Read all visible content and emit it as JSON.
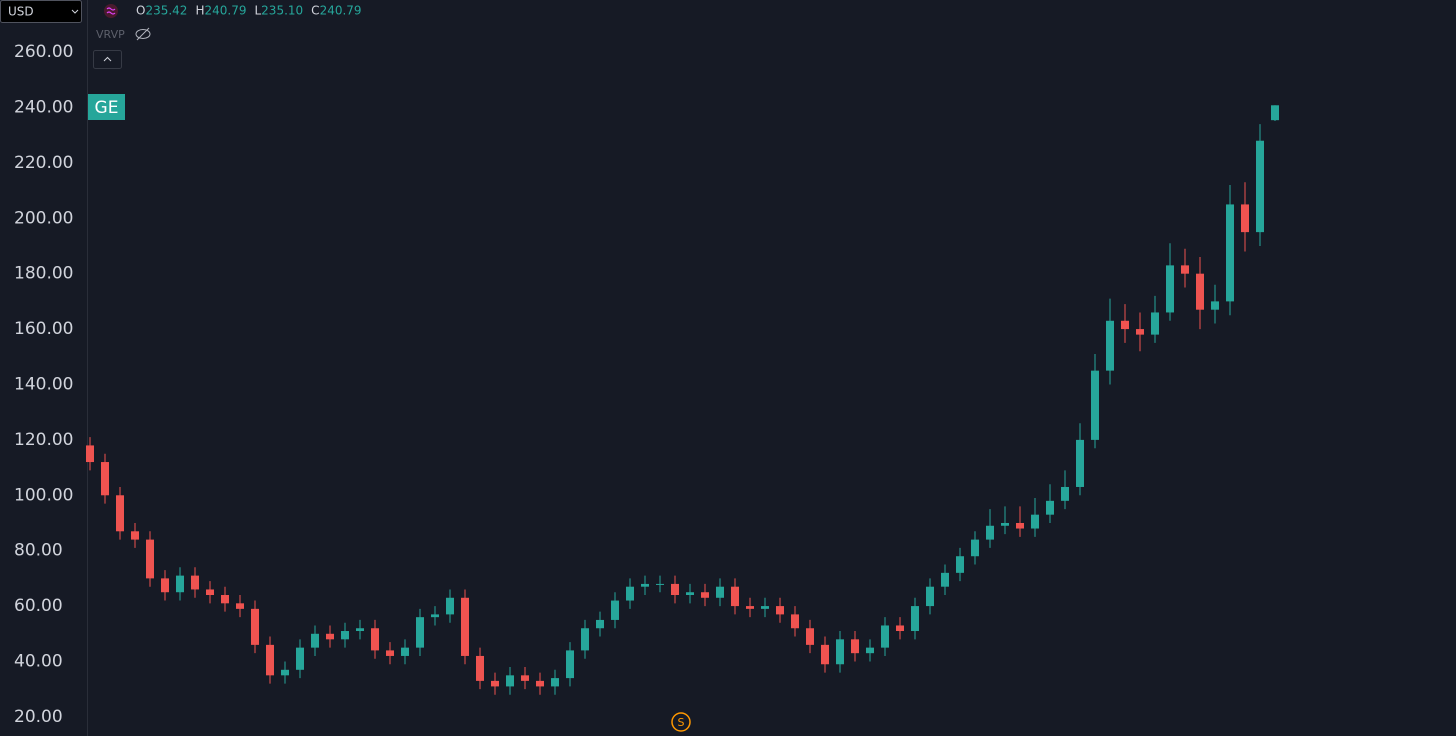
{
  "chart_data": {
    "type": "candlestick",
    "symbol": "GE",
    "currency": "USD",
    "indicator": "VRVP",
    "event_marker": "S",
    "ohlc_legend": [
      {
        "key": "O",
        "text": "235.42"
      },
      {
        "key": "H",
        "text": "240.79"
      },
      {
        "key": "L",
        "text": "235.10"
      },
      {
        "key": "C",
        "text": "240.79"
      }
    ],
    "up_color": "#26a69a",
    "down_color": "#ef5350",
    "grid": false,
    "ylim": [
      13.1,
      278.8
    ],
    "yticks": [
      {
        "value": 20,
        "label": "20.00"
      },
      {
        "value": 40,
        "label": "40.00"
      },
      {
        "value": 60,
        "label": "60.00"
      },
      {
        "value": 80,
        "label": "80.00"
      },
      {
        "value": 100,
        "label": "100.00"
      },
      {
        "value": 120,
        "label": "120.00"
      },
      {
        "value": 140,
        "label": "140.00"
      },
      {
        "value": 160,
        "label": "160.00"
      },
      {
        "value": 180,
        "label": "180.00"
      },
      {
        "value": 200,
        "label": "200.00"
      },
      {
        "value": 220,
        "label": "220.00"
      },
      {
        "value": 240,
        "label": "240.00"
      },
      {
        "value": 260,
        "label": "260.00"
      }
    ],
    "open": [
      118,
      112,
      100,
      87,
      84,
      70,
      65,
      71,
      66,
      64,
      61,
      59,
      46,
      35,
      37,
      45,
      50,
      48,
      51,
      52,
      44,
      42,
      45,
      56,
      57,
      63,
      42,
      33,
      31,
      35,
      33,
      31,
      34,
      44,
      52,
      55,
      62,
      67,
      68,
      68,
      64,
      65,
      63,
      67,
      60,
      59,
      60,
      57,
      52,
      46,
      39,
      48,
      43,
      45,
      53,
      51,
      60,
      67,
      72,
      78,
      84,
      89,
      90,
      88,
      93,
      98,
      103,
      120,
      145,
      163,
      160,
      158,
      166,
      183,
      180,
      167,
      170,
      205,
      195,
      235.42
    ],
    "high": [
      121,
      115,
      103,
      90,
      87,
      73,
      74,
      74,
      69,
      67,
      64,
      62,
      49,
      40,
      48,
      53,
      53,
      54,
      55,
      55,
      47,
      48,
      59,
      60,
      66,
      66,
      45,
      36,
      38,
      38,
      36,
      37,
      47,
      55,
      58,
      65,
      70,
      71,
      71,
      71,
      68,
      68,
      70,
      70,
      63,
      63,
      63,
      60,
      55,
      49,
      51,
      51,
      48,
      56,
      56,
      63,
      70,
      75,
      81,
      87,
      95,
      96,
      96,
      99,
      104,
      109,
      126,
      151,
      171,
      169,
      166,
      172,
      191,
      189,
      186,
      176,
      212,
      213,
      234,
      240.79
    ],
    "low": [
      109,
      97,
      84,
      81,
      67,
      62,
      62,
      63,
      61,
      58,
      56,
      43,
      32,
      32,
      34,
      42,
      45,
      45,
      48,
      41,
      39,
      39,
      42,
      53,
      54,
      39,
      30,
      28,
      28,
      30,
      28,
      28,
      31,
      41,
      49,
      52,
      59,
      64,
      65,
      61,
      61,
      60,
      60,
      57,
      56,
      56,
      54,
      49,
      43,
      36,
      36,
      40,
      40,
      42,
      48,
      48,
      57,
      64,
      69,
      75,
      81,
      86,
      85,
      85,
      90,
      95,
      100,
      117,
      140,
      155,
      152,
      155,
      163,
      175,
      160,
      162,
      165,
      188,
      190,
      235.1
    ],
    "close": [
      112,
      100,
      87,
      84,
      70,
      65,
      71,
      66,
      64,
      61,
      59,
      46,
      35,
      37,
      45,
      50,
      48,
      51,
      52,
      44,
      42,
      45,
      56,
      57,
      63,
      42,
      33,
      31,
      35,
      33,
      31,
      34,
      44,
      52,
      55,
      62,
      67,
      68,
      68,
      64,
      65,
      63,
      67,
      60,
      59,
      60,
      57,
      52,
      46,
      39,
      48,
      43,
      45,
      53,
      51,
      60,
      67,
      72,
      78,
      84,
      89,
      90,
      88,
      93,
      98,
      103,
      120,
      145,
      163,
      160,
      158,
      166,
      183,
      180,
      167,
      170,
      205,
      195,
      228,
      240.79
    ]
  }
}
